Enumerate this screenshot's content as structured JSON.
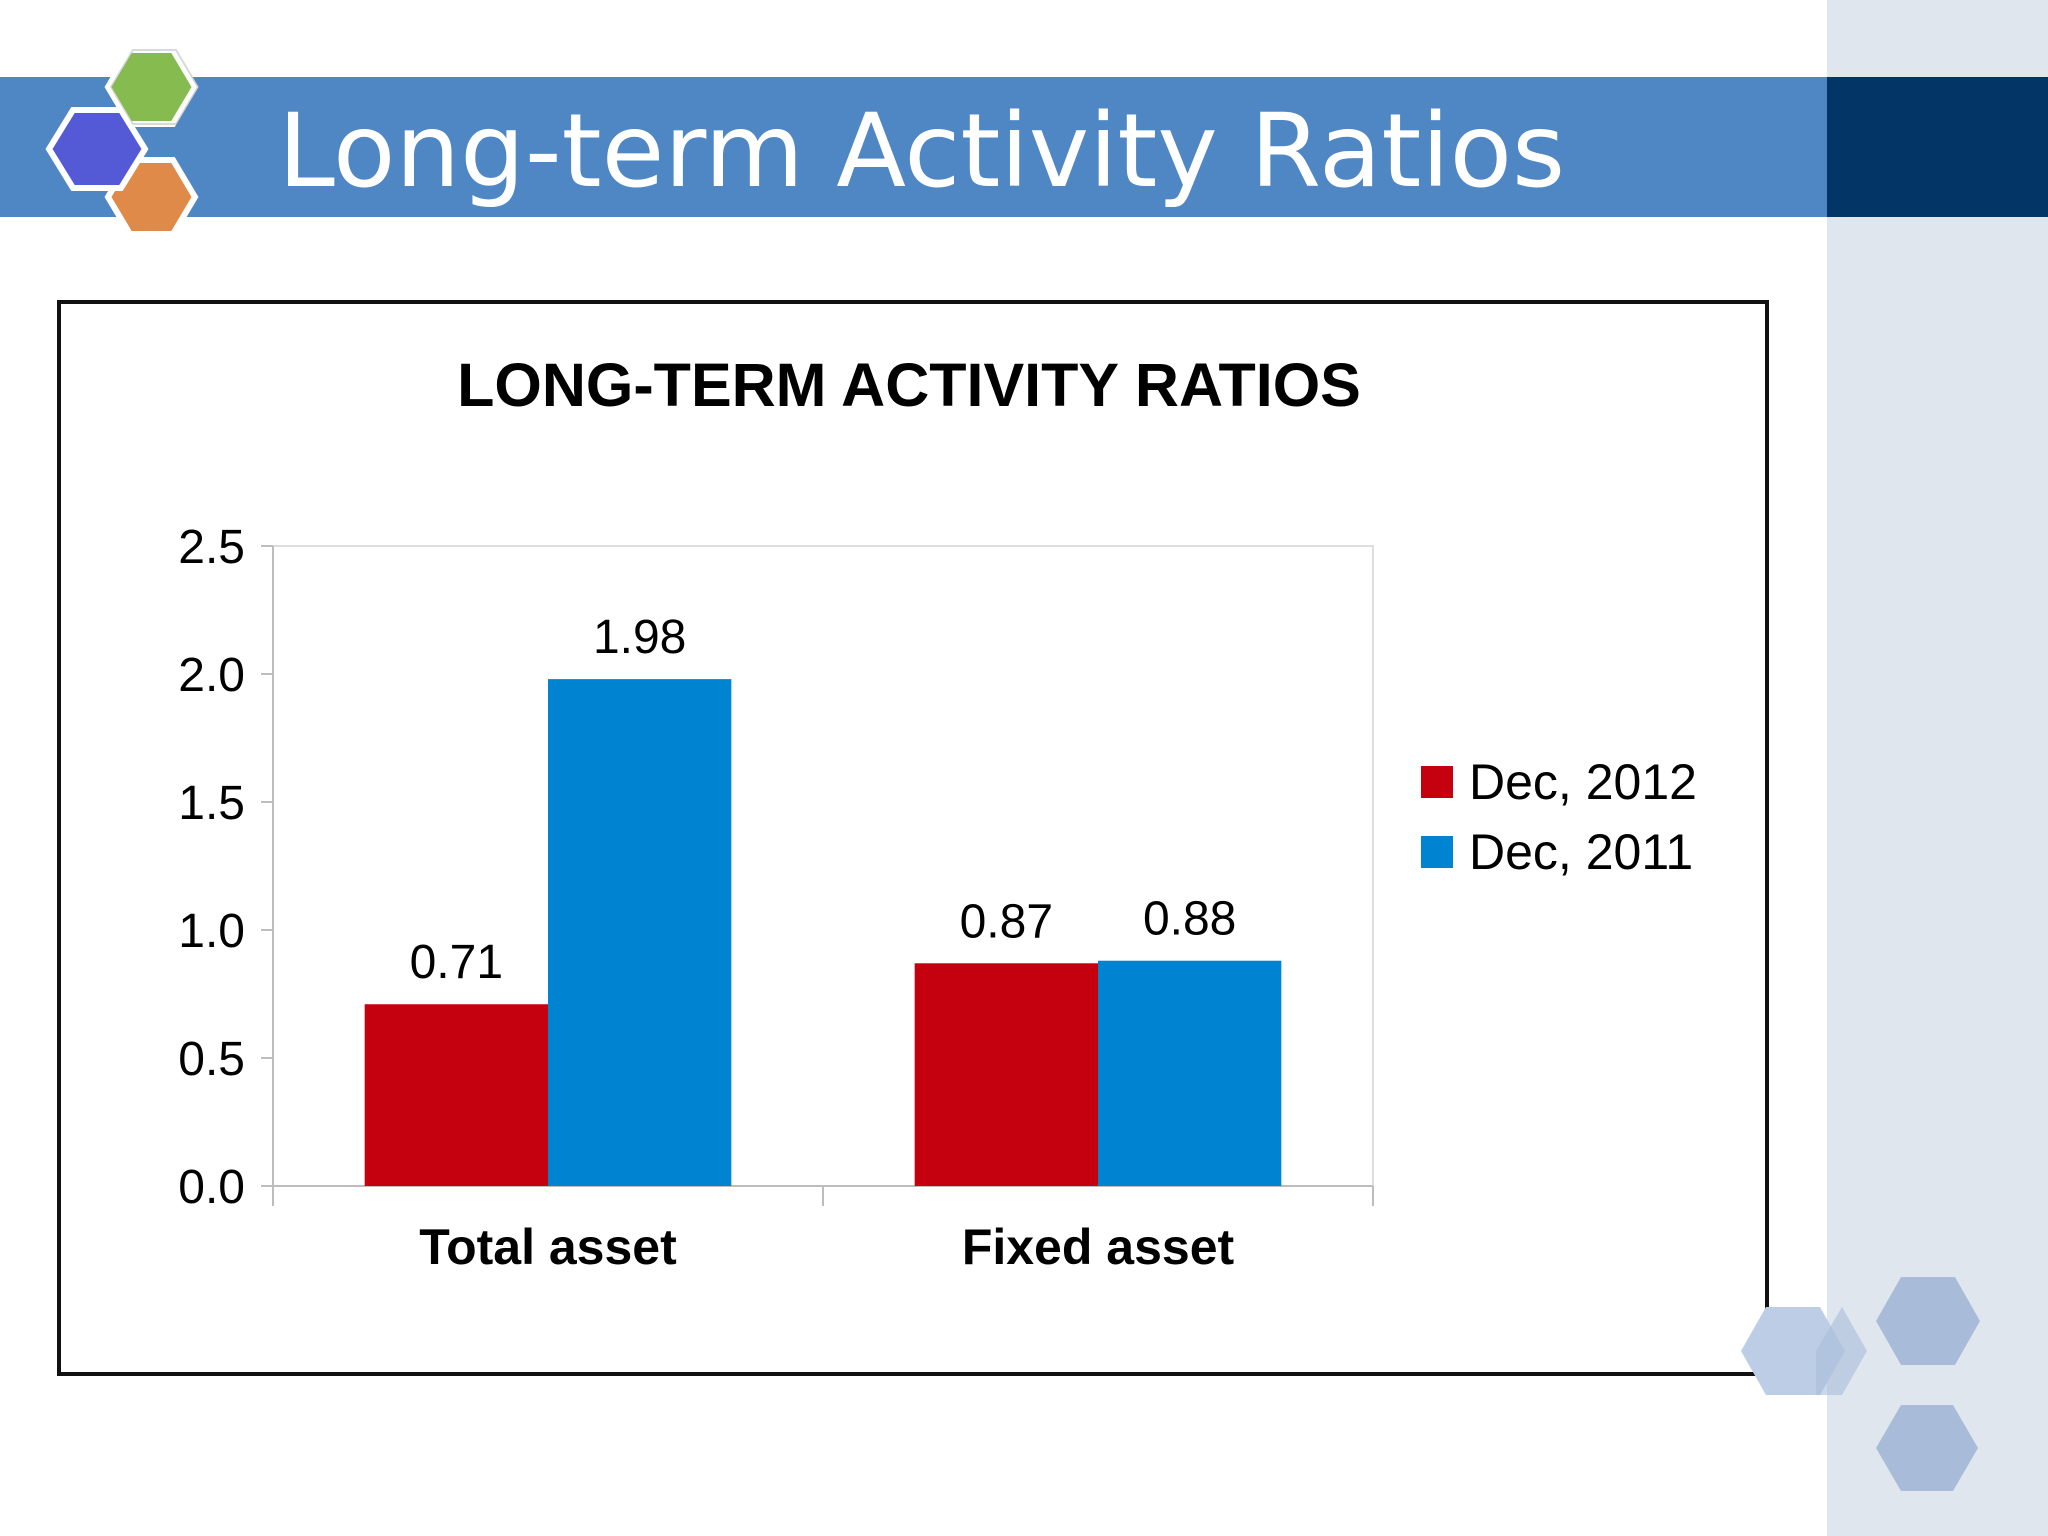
{
  "slide": {
    "title": "Long-term Activity Ratios"
  },
  "colors": {
    "title_bar": "#4f86c4",
    "title_bar_dark": "#033667",
    "series_2012": "#c5000f",
    "series_2011": "#0084d1",
    "logo_blue": "#5459d6",
    "logo_green": "#86bb4f",
    "logo_orange": "#e08a4a"
  },
  "chart_data": {
    "type": "bar",
    "title": "LONG-TERM ACTIVITY RATIOS",
    "categories": [
      "Total asset",
      "Fixed asset"
    ],
    "series": [
      {
        "name": "Dec, 2012",
        "values": [
          0.71,
          0.87
        ],
        "labels": [
          "0.71",
          "0.87"
        ],
        "color": "#c5000f"
      },
      {
        "name": "Dec, 2011",
        "values": [
          1.98,
          0.88
        ],
        "labels": [
          "1.98",
          "0.88"
        ],
        "color": "#0084d1"
      }
    ],
    "ylim": [
      0,
      2.5
    ],
    "yticks": [
      "0.0",
      "0.5",
      "1.0",
      "1.5",
      "2.0",
      "2.5"
    ],
    "legend": "right",
    "grid": false
  }
}
